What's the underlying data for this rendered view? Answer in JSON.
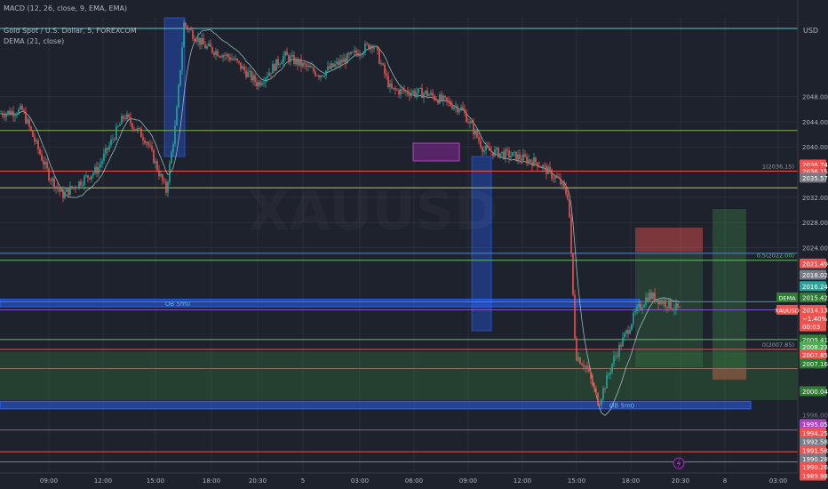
{
  "header": {
    "macd_legend": "MACD (12, 26, close, 9, EMA, EMA)",
    "symbol_legend": "Gold Spot / U.S. Dollar, 5, FOREXCOM",
    "dema_legend": "DEMA (21, close)"
  },
  "watermark": "XAUUSD",
  "currency": "USD",
  "chart_data": {
    "type": "candlestick",
    "symbol": "XAUUSD",
    "ylim": [
      1988.5,
      2060.5
    ],
    "y_ticks": [
      2048.0,
      2044.0,
      2040.0,
      2032.0,
      2028.0,
      2024.0
    ],
    "x_ticks": [
      "09:00",
      "12:00",
      "15:00",
      "18:00",
      "20:30",
      "5",
      "03:00",
      "06:00",
      "09:00",
      "12:00",
      "15:00",
      "18:00",
      "20:30",
      "8",
      "03:00"
    ],
    "price_path": [
      {
        "t": 0,
        "p": 2045.3
      },
      {
        "t": 25,
        "p": 2045.8
      },
      {
        "t": 55,
        "p": 2035.5
      },
      {
        "t": 70,
        "p": 2032.3
      },
      {
        "t": 110,
        "p": 2036.5
      },
      {
        "t": 140,
        "p": 2045.0
      },
      {
        "t": 165,
        "p": 2041.0
      },
      {
        "t": 187,
        "p": 2033.0
      },
      {
        "t": 198,
        "p": 2044.0
      },
      {
        "t": 207,
        "p": 2059.5
      },
      {
        "t": 230,
        "p": 2056.0
      },
      {
        "t": 262,
        "p": 2054.0
      },
      {
        "t": 290,
        "p": 2050.0
      },
      {
        "t": 320,
        "p": 2054.5
      },
      {
        "t": 360,
        "p": 2051.5
      },
      {
        "t": 420,
        "p": 2056.5
      },
      {
        "t": 440,
        "p": 2049.0
      },
      {
        "t": 480,
        "p": 2048.5
      },
      {
        "t": 520,
        "p": 2046.0
      },
      {
        "t": 545,
        "p": 2039.5
      },
      {
        "t": 580,
        "p": 2038.5
      },
      {
        "t": 605,
        "p": 2037.5
      },
      {
        "t": 630,
        "p": 2034.5
      },
      {
        "t": 640,
        "p": 2032.0
      },
      {
        "t": 648,
        "p": 2007.0
      },
      {
        "t": 660,
        "p": 2005.0
      },
      {
        "t": 674,
        "p": 1999.3
      },
      {
        "t": 690,
        "p": 2006.0
      },
      {
        "t": 715,
        "p": 2013.5
      },
      {
        "t": 730,
        "p": 2016.5
      },
      {
        "t": 745,
        "p": 2015.5
      },
      {
        "t": 765,
        "p": 2014.1
      }
    ],
    "horizontal_levels": [
      {
        "price": 2058.8,
        "color": "#5ac8c8"
      },
      {
        "price": 2042.6,
        "color": "#7cb342"
      },
      {
        "price": 2036.15,
        "color": "#f0514f"
      },
      {
        "price": 2033.5,
        "color": "#c0ca33"
      },
      {
        "price": 2023.1,
        "color": "#4f86c6"
      },
      {
        "price": 2022.0,
        "color": "#66bb6a"
      },
      {
        "price": 2015.42,
        "color": "#2196f3"
      },
      {
        "price": 2014.13,
        "color": "#7e57c2"
      },
      {
        "price": 2009.41,
        "color": "#66bb6a"
      },
      {
        "price": 2007.85,
        "color": "#ef5350"
      },
      {
        "price": 2004.8,
        "color": "#8d6e63"
      },
      {
        "price": 1995.05,
        "color": "#ab47bc"
      },
      {
        "price": 1991.58,
        "color": "#ef5350"
      },
      {
        "price": 1989.98,
        "color": "#ef5350"
      }
    ],
    "zones": [
      {
        "label": "OB 5m0",
        "from_price": 2014.6,
        "to_price": 2015.8,
        "color": "#2962ff"
      },
      {
        "label": "OB 5m0",
        "from_price": 1999.6,
        "to_price": 1998.4,
        "color": "#2962ff"
      },
      {
        "label": "",
        "from_price": 2007.5,
        "to_price": 1999.8,
        "color": "#388e3c"
      }
    ],
    "fib_labels": [
      "1(2036.15)",
      "0.5(2022.00)",
      "0(2007.85)"
    ],
    "price_labels": [
      {
        "text": "2036.74",
        "price": 2037.2,
        "bg": "#ef5350",
        "fg": "#ffffff"
      },
      {
        "text": "2036.15",
        "price": 2036.15,
        "bg": "#ef5350",
        "fg": "#ffffff"
      },
      {
        "text": "2035.57",
        "price": 2035.1,
        "bg": "#787b86",
        "fg": "#ffffff"
      },
      {
        "text": "2021.49",
        "price": 2021.49,
        "bg": "#ef5350",
        "fg": "#ffffff"
      },
      {
        "text": "2018.02",
        "price": 2019.7,
        "bg": "#787b86",
        "fg": "#ffffff"
      },
      {
        "text": "2016.24",
        "price": 2017.9,
        "bg": "#26a69a",
        "fg": "#ffffff"
      },
      {
        "text": "2015.42",
        "price": 2016.1,
        "bg": "#2e7d32",
        "fg": "#ffffff"
      },
      {
        "text": "2014.13",
        "price": 2014.13,
        "bg": "#ef5350",
        "fg": "#ffffff"
      },
      {
        "text": "−1.40%",
        "price": 2012.8,
        "bg": "#ef5350",
        "fg": "#ffffff"
      },
      {
        "text": "00:03",
        "price": 2011.5,
        "bg": "#ef5350",
        "fg": "#ffffff"
      },
      {
        "text": "2009.41",
        "price": 2009.41,
        "bg": "#2e7d32",
        "fg": "#ffffff"
      },
      {
        "text": "2008.23",
        "price": 2008.3,
        "bg": "#4caf50",
        "fg": "#ffffff"
      },
      {
        "text": "2007.85",
        "price": 2007.0,
        "bg": "#ef5350",
        "fg": "#ffffff"
      },
      {
        "text": "2007.16",
        "price": 2005.6,
        "bg": "#2e7d32",
        "fg": "#ffffff"
      },
      {
        "text": "2000.04",
        "price": 2001.2,
        "bg": "#2e7d32",
        "fg": "#ffffff"
      },
      {
        "text": "1996.00",
        "price": 1997.5,
        "bg": "",
        "fg": "#787b86"
      },
      {
        "text": "1995.05",
        "price": 1996.0,
        "bg": "#ab47bc",
        "fg": "#ffffff"
      },
      {
        "text": "1994.25",
        "price": 1994.6,
        "bg": "#ef5350",
        "fg": "#ffffff"
      },
      {
        "text": "1992.58",
        "price": 1993.2,
        "bg": "#787b86",
        "fg": "#ffffff"
      },
      {
        "text": "1991.58",
        "price": 1991.8,
        "bg": "#ef5350",
        "fg": "#ffffff"
      },
      {
        "text": "1990.28",
        "price": 1990.5,
        "bg": "#787b86",
        "fg": "#ffffff"
      },
      {
        "text": "1990.26",
        "price": 1989.2,
        "bg": "#ef5350",
        "fg": "#ffffff"
      },
      {
        "text": "1989.98",
        "price": 1987.8,
        "bg": "#ef5350",
        "fg": "#ffffff"
      }
    ],
    "tag_dema": "DEMA",
    "tag_symbol": "XAUUSD"
  },
  "colors": {
    "background": "#1e222d",
    "grid": "#2a2e39",
    "up": "#26a69a",
    "down": "#ef5350",
    "text": "#b2b5be"
  }
}
